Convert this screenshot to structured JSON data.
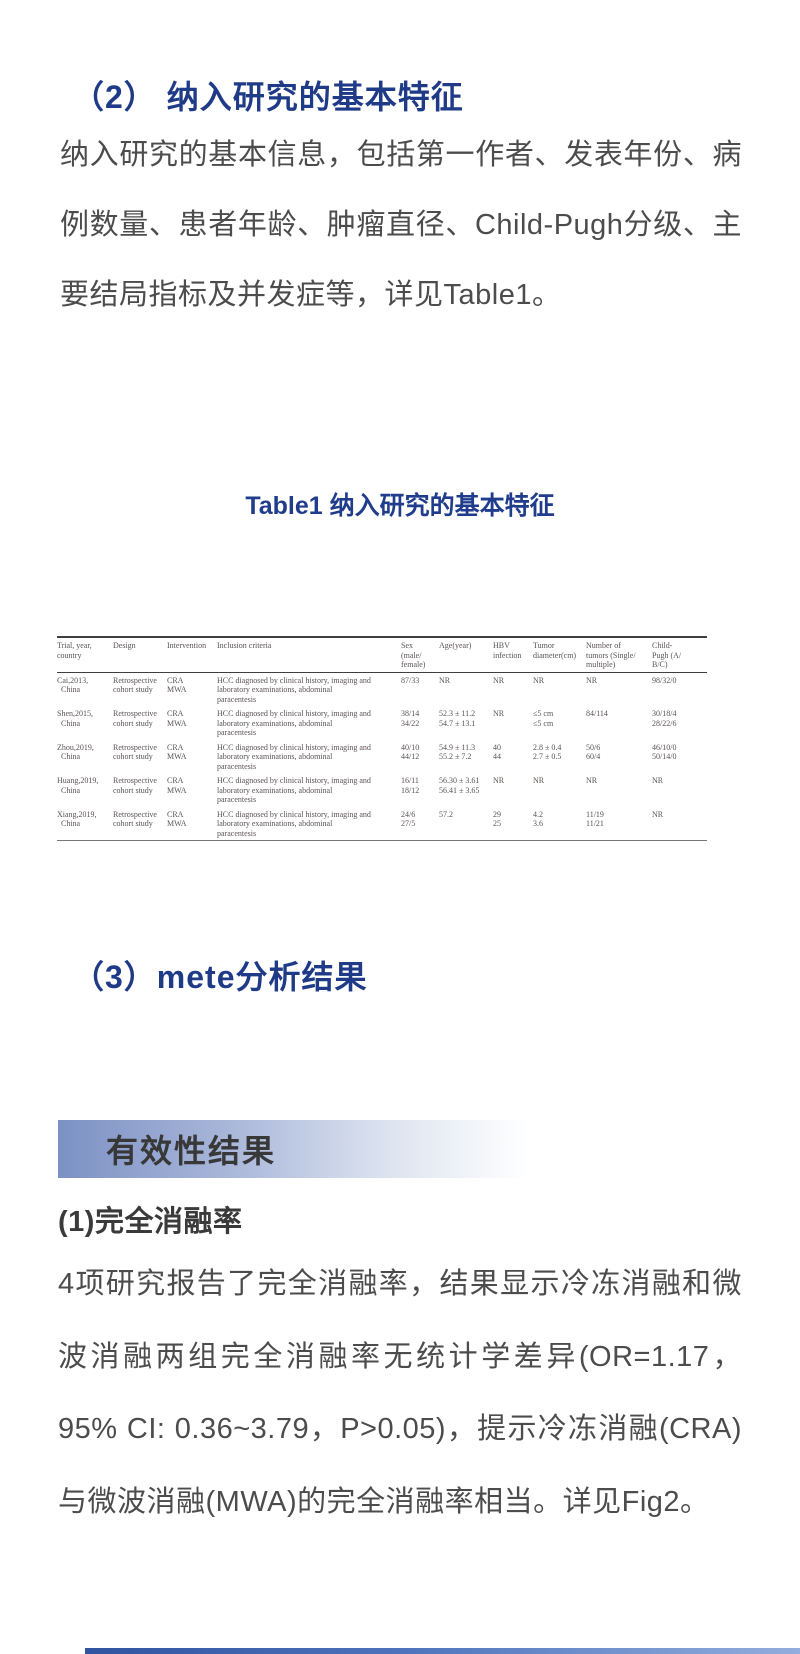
{
  "colors": {
    "heading_navy": "#1f3a87",
    "caption_blue": "#203c8c",
    "body_text": "#4c4c4c",
    "banner_gradient_start": "#7c91c4",
    "banner_text": "#383838",
    "table_text": "#5b5353",
    "bottom_bar_blue": "#30549f"
  },
  "sections": {
    "s2": {
      "heading": "（2） 纳入研究的基本特征",
      "paragraph": "纳入研究的基本信息，包括第一作者、发表年份、病例数量、患者年龄、肿瘤直径、Child-Pugh分级、主要结局指标及并发症等，详见Table1。"
    },
    "s3": {
      "heading": "（3）mete分析结果",
      "banner_title": "有效性结果",
      "sub_heading": "(1)完全消融率",
      "paragraph": "4项研究报告了完全消融率，结果显示冷冻消融和微波消融两组完全消融率无统计学差异(OR=1.17，95% CI: 0.36~3.79，P>0.05)，提示冷冻消融(CRA)与微波消融(MWA)的完全消融率相当。详见Fig2。"
    }
  },
  "table1": {
    "caption": "Table1 纳入研究的基本特征",
    "headers": [
      "Trial, year,\ncountry",
      "Design",
      "Intervention",
      "Inclusion criteria",
      "Sex\n(male/\nfemale)",
      "Age(year)",
      "HBV\ninfection",
      "Tumor\ndiameter(cm)",
      "Number of\ntumors (Single/\nmultiple)",
      "Child-\nPugh (A/\nB/C)"
    ],
    "rows": [
      [
        "Cai,2013,\n China",
        "Retrospective\ncohort study",
        "CRA\nMWA",
        "HCC diagnosed by clinical history, imaging and\nlaboratory examinations, abdominal\nparacentesis",
        "87/33",
        "NR",
        "NR",
        "NR",
        "NR",
        "98/32/0"
      ],
      [
        "Shen,2015,\n China",
        "Retrospective\ncohort study",
        "CRA\nMWA",
        "HCC diagnosed by clinical history, imaging and\nlaboratory examinations, abdominal\nparacentesis",
        "38/14\n34/22",
        "52.3 ± 11.2\n54.7 ± 13.1",
        "NR",
        "≤5 cm\n≤5 cm",
        "84/114",
        "30/18/4\n28/22/6"
      ],
      [
        "Zhou,2019,\n China",
        "Retrospective\ncohort study",
        "CRA\nMWA",
        "HCC diagnosed by clinical history, imaging and\nlaboratory examinations, abdominal\nparacentesis",
        "40/10\n44/12",
        "54.9 ± 11.3\n55.2 ± 7.2",
        "40\n44",
        "2.8 ± 0.4\n2.7 ± 0.5",
        "50/6\n60/4",
        "46/10/0\n50/14/0"
      ],
      [
        "Huang,2019,\n China",
        "Retrospective\ncohort study",
        "CRA\nMWA",
        "HCC diagnosed by clinical history, imaging and\nlaboratory examinations, abdominal\nparacentesis",
        "16/11\n18/12",
        "56.30 ± 3.61\n56.41 ± 3.65",
        "NR",
        "NR",
        "NR",
        "NR"
      ],
      [
        "Xiang,2019,\n China",
        "Retrospective\ncohort study",
        "CRA\nMWA",
        "HCC diagnosed by clinical history, imaging and\nlaboratory examinations, abdominal\nparacentesis",
        "24/6\n27/5",
        "57.2",
        "29\n25",
        "4.2\n3.6",
        "11/19\n11/21",
        "NR"
      ]
    ]
  }
}
